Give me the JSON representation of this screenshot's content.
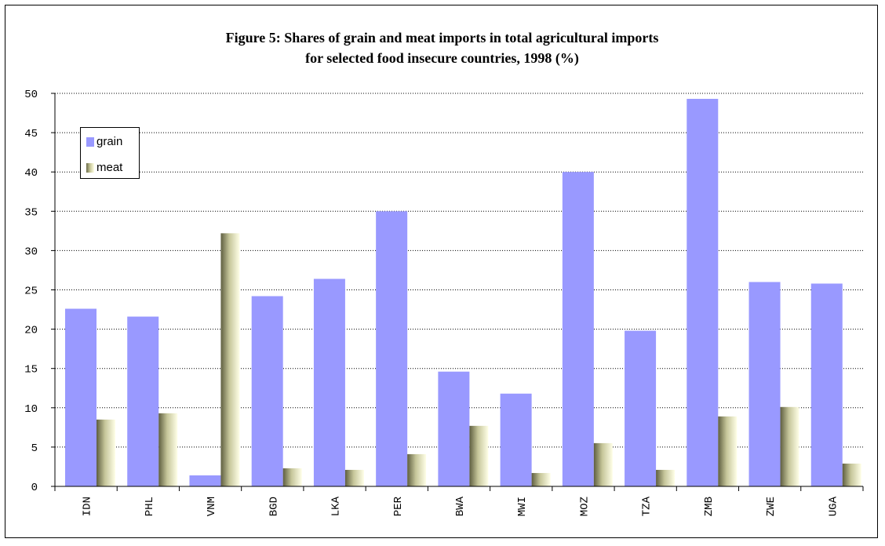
{
  "chart_data": {
    "type": "bar",
    "title": "Figure 5: Shares of grain and meat imports in total agricultural imports",
    "subtitle": "for selected food insecure countries, 1998 (%)",
    "categories": [
      "IDN",
      "PHL",
      "VNM",
      "BGD",
      "LKA",
      "PER",
      "BWA",
      "MWI",
      "MOZ",
      "TZA",
      "ZMB",
      "ZWE",
      "UGA"
    ],
    "series": [
      {
        "name": "grain",
        "color": "#9999ff",
        "values": [
          22.6,
          21.6,
          1.4,
          24.2,
          26.4,
          35.0,
          14.6,
          11.8,
          40.0,
          19.8,
          49.3,
          26.0,
          25.8
        ]
      },
      {
        "name": "meat",
        "color": "#e8e8b8",
        "values": [
          8.5,
          9.3,
          32.2,
          2.3,
          2.1,
          4.1,
          7.7,
          1.7,
          5.5,
          2.1,
          8.9,
          10.1,
          2.9
        ]
      }
    ],
    "ylim": [
      0,
      50
    ],
    "yticks": [
      0,
      5,
      10,
      15,
      20,
      25,
      30,
      35,
      40,
      45,
      50
    ],
    "grid": true,
    "legend": "top-left"
  }
}
